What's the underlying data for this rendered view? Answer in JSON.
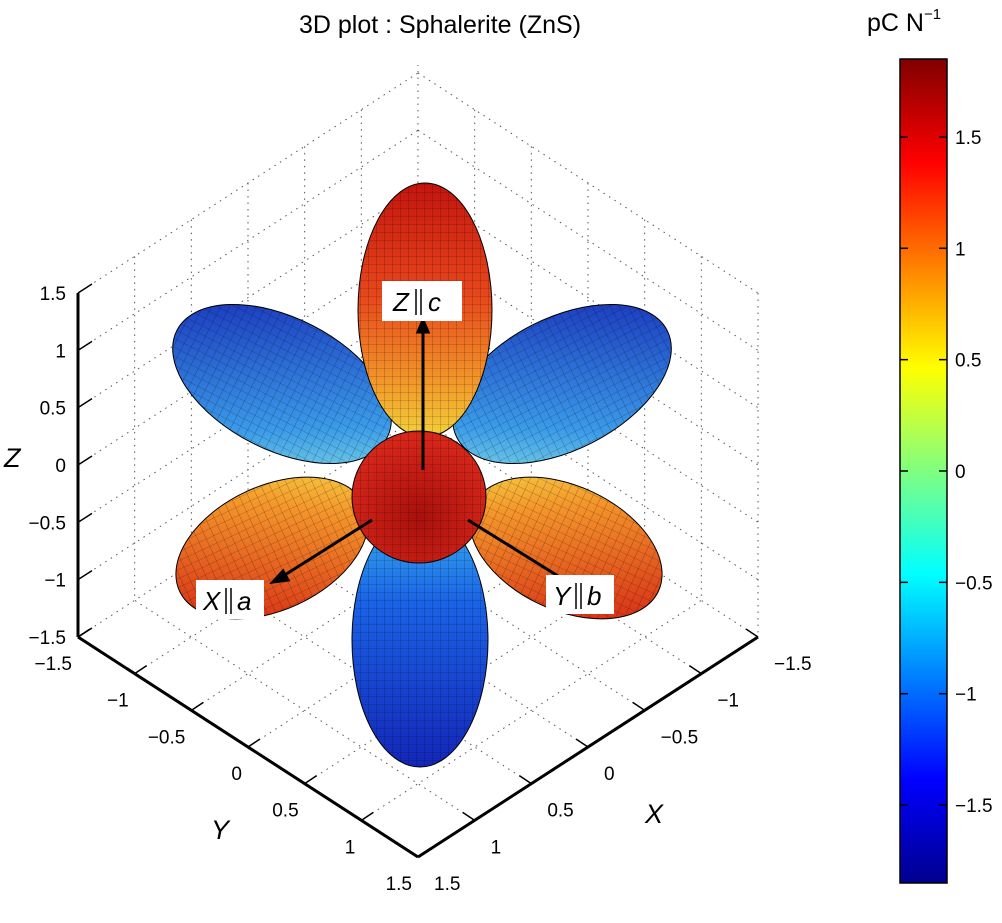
{
  "chart_data": {
    "type": "3d surface",
    "title": "3D plot : Sphalerite (ZnS)",
    "xlabel": "X",
    "ylabel": "Y",
    "zlabel": "Z",
    "xlim": [
      -1.5,
      1.5
    ],
    "ylim": [
      -1.5,
      1.5
    ],
    "zlim": [
      -1.5,
      1.5
    ],
    "grid": true,
    "x_ticks": [
      "−1.5",
      "−1",
      "−0.5",
      "0",
      "0.5",
      "1",
      "1.5"
    ],
    "y_ticks": [
      "−1.5",
      "−1",
      "−0.5",
      "0",
      "0.5",
      "1",
      "1.5"
    ],
    "z_ticks": [
      "1.5",
      "1",
      "0.5",
      "0",
      "−0.5",
      "−1",
      "−1.5"
    ],
    "lobes": [
      {
        "direction": "+Z",
        "sign": "positive"
      },
      {
        "direction": "−Z",
        "sign": "negative"
      },
      {
        "direction": "upper-left",
        "sign": "negative"
      },
      {
        "direction": "upper-right",
        "sign": "negative"
      },
      {
        "direction": "lower-left (X)",
        "sign": "positive"
      },
      {
        "direction": "lower-right (Y)",
        "sign": "positive"
      }
    ],
    "annotations": [
      {
        "name": "Z",
        "parallel": "c"
      },
      {
        "name": "X",
        "parallel": "a"
      },
      {
        "name": "Y",
        "parallel": "b"
      }
    ],
    "colorbar": {
      "label": "pC N",
      "label_exponent": "−1",
      "range": [
        -1.85,
        1.85
      ],
      "ticks": [
        "1.5",
        "1",
        "0.5",
        "0",
        "−0.5",
        "−1",
        "−1.5"
      ],
      "tick_values": [
        1.5,
        1,
        0.5,
        0,
        -0.5,
        -1,
        -1.5
      ],
      "colormap": "jet"
    }
  }
}
